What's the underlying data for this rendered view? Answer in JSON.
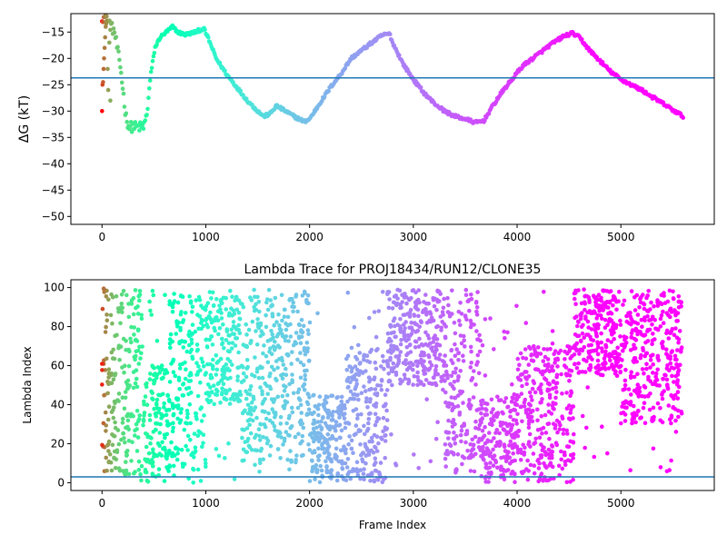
{
  "chart_data": [
    {
      "type": "scatter",
      "title": "",
      "xlabel": "",
      "ylabel": "ΔG (kT)",
      "xlim": [
        -300,
        5900
      ],
      "ylim": [
        -51.5,
        -11.5
      ],
      "xticks": [
        0,
        1000,
        2000,
        3000,
        4000,
        5000
      ],
      "yticks": [
        -50,
        -45,
        -40,
        -35,
        -30,
        -25,
        -20,
        -15
      ],
      "xtick_labels": [
        "0",
        "1000",
        "2000",
        "3000",
        "4000",
        "5000"
      ],
      "ytick_labels": [
        "−50",
        "−45",
        "−40",
        "−35",
        "−30",
        "−25",
        "−20",
        "−15"
      ],
      "hline": -23.7,
      "hline_color": "#1f77b4",
      "colormap": "rainbow",
      "n_frames": 5600,
      "trace_keypoints": [
        [
          0,
          -12
        ],
        [
          60,
          -13
        ],
        [
          120,
          -15
        ],
        [
          180,
          -22
        ],
        [
          230,
          -31
        ],
        [
          260,
          -33
        ],
        [
          320,
          -33
        ],
        [
          400,
          -33
        ],
        [
          430,
          -31
        ],
        [
          470,
          -23
        ],
        [
          510,
          -18
        ],
        [
          560,
          -16
        ],
        [
          620,
          -15
        ],
        [
          680,
          -14
        ],
        [
          730,
          -15
        ],
        [
          800,
          -15.5
        ],
        [
          900,
          -15
        ],
        [
          980,
          -14.3
        ],
        [
          1030,
          -16.5
        ],
        [
          1100,
          -20
        ],
        [
          1200,
          -23
        ],
        [
          1300,
          -25.5
        ],
        [
          1400,
          -28
        ],
        [
          1500,
          -30
        ],
        [
          1560,
          -31
        ],
        [
          1620,
          -30.5
        ],
        [
          1680,
          -29
        ],
        [
          1750,
          -29.8
        ],
        [
          1850,
          -31
        ],
        [
          1950,
          -32
        ],
        [
          2000,
          -31.5
        ],
        [
          2100,
          -28.5
        ],
        [
          2200,
          -25.5
        ],
        [
          2300,
          -23
        ],
        [
          2400,
          -20
        ],
        [
          2500,
          -18.5
        ],
        [
          2600,
          -17
        ],
        [
          2700,
          -15.6
        ],
        [
          2770,
          -15.3
        ],
        [
          2800,
          -17
        ],
        [
          2900,
          -21
        ],
        [
          3000,
          -24
        ],
        [
          3100,
          -26.5
        ],
        [
          3200,
          -28.5
        ],
        [
          3300,
          -30
        ],
        [
          3400,
          -31
        ],
        [
          3500,
          -31.5
        ],
        [
          3600,
          -32.2
        ],
        [
          3680,
          -31.8
        ],
        [
          3750,
          -29.5
        ],
        [
          3850,
          -26.5
        ],
        [
          3950,
          -24
        ],
        [
          4050,
          -21.5
        ],
        [
          4150,
          -20
        ],
        [
          4250,
          -18.5
        ],
        [
          4350,
          -17
        ],
        [
          4450,
          -15.8
        ],
        [
          4530,
          -15.2
        ],
        [
          4600,
          -16
        ],
        [
          4700,
          -18.5
        ],
        [
          4800,
          -20.5
        ],
        [
          4900,
          -22.5
        ],
        [
          5000,
          -24
        ],
        [
          5100,
          -25
        ],
        [
          5200,
          -26
        ],
        [
          5300,
          -27.3
        ],
        [
          5400,
          -28.5
        ],
        [
          5500,
          -29.8
        ],
        [
          5600,
          -31
        ]
      ],
      "early_outliers": [
        [
          0,
          -30
        ],
        [
          5,
          -25
        ],
        [
          10,
          -24.5
        ],
        [
          15,
          -22
        ],
        [
          20,
          -20
        ],
        [
          25,
          -18
        ],
        [
          30,
          -16
        ],
        [
          35,
          -14
        ],
        [
          40,
          -13
        ],
        [
          45,
          -12
        ],
        [
          55,
          -22
        ],
        [
          60,
          -26
        ],
        [
          70,
          -17
        ],
        [
          80,
          -28
        ]
      ]
    },
    {
      "type": "scatter",
      "title": "Lambda Trace for PROJ18434/RUN12/CLONE35",
      "xlabel": "Frame Index",
      "ylabel": "Lambda Index",
      "xlim": [
        -300,
        5900
      ],
      "ylim": [
        -4,
        104
      ],
      "xticks": [
        0,
        1000,
        2000,
        3000,
        4000,
        5000
      ],
      "yticks": [
        0,
        20,
        40,
        60,
        80,
        100
      ],
      "xtick_labels": [
        "0",
        "1000",
        "2000",
        "3000",
        "4000",
        "5000"
      ],
      "ytick_labels": [
        "0",
        "20",
        "40",
        "60",
        "80",
        "100"
      ],
      "hline": 3,
      "hline_color": "#1f77b4",
      "colormap": "rainbow",
      "n_frames": 5600,
      "regions": [
        [
          0,
          60,
          0,
          100
        ],
        [
          60,
          200,
          5,
          99
        ],
        [
          200,
          400,
          0,
          99
        ],
        [
          400,
          650,
          0,
          60
        ],
        [
          650,
          1000,
          0,
          99
        ],
        [
          1000,
          1350,
          40,
          99
        ],
        [
          1350,
          1700,
          10,
          99
        ],
        [
          1700,
          2000,
          10,
          99
        ],
        [
          2000,
          2350,
          0,
          45
        ],
        [
          2350,
          2750,
          0,
          70
        ],
        [
          2750,
          3300,
          50,
          99
        ],
        [
          3300,
          3650,
          5,
          99
        ],
        [
          3650,
          4000,
          0,
          45
        ],
        [
          4000,
          4550,
          0,
          70
        ],
        [
          4550,
          5000,
          55,
          99
        ],
        [
          5000,
          5600,
          30,
          99
        ]
      ]
    }
  ]
}
